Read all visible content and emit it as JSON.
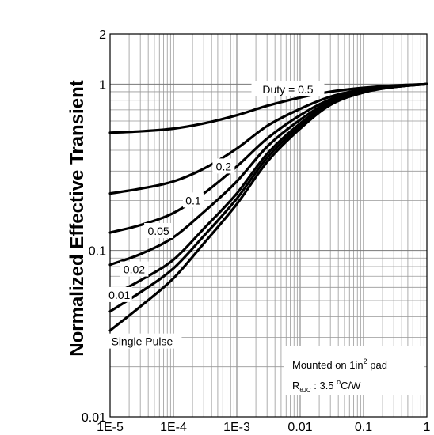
{
  "chart_data": {
    "type": "line",
    "title": "",
    "xlabel": "",
    "ylabel": "Normalized Effective Transient",
    "x_scale": "log",
    "y_scale": "log",
    "xlim": [
      1e-05,
      1
    ],
    "ylim": [
      0.01,
      2
    ],
    "x_ticks": [
      {
        "value": 1e-05,
        "label": "1E-5"
      },
      {
        "value": 0.0001,
        "label": "1E-4"
      },
      {
        "value": 0.001,
        "label": "1E-3"
      },
      {
        "value": 0.01,
        "label": "0.01"
      },
      {
        "value": 0.1,
        "label": "0.1"
      },
      {
        "value": 1,
        "label": "1"
      }
    ],
    "y_ticks": [
      {
        "value": 0.01,
        "label": "0.01"
      },
      {
        "value": 0.1,
        "label": "0.1"
      },
      {
        "value": 1,
        "label": "1"
      },
      {
        "value": 2,
        "label": "2"
      }
    ],
    "grid": true,
    "series_label_prefix": "Duty = ",
    "series": [
      {
        "name": "0.5",
        "x": [
          1e-05,
          3e-05,
          0.0001,
          0.0003,
          0.001,
          0.003,
          0.01,
          0.03,
          0.1,
          0.3,
          1
        ],
        "y": [
          0.51,
          0.52,
          0.54,
          0.58,
          0.65,
          0.74,
          0.83,
          0.9,
          0.95,
          0.98,
          1.0
        ]
      },
      {
        "name": "0.2",
        "x": [
          1e-05,
          3e-05,
          0.0001,
          0.0003,
          0.001,
          0.003,
          0.01,
          0.03,
          0.1,
          0.3,
          1
        ],
        "y": [
          0.22,
          0.235,
          0.26,
          0.31,
          0.41,
          0.56,
          0.71,
          0.84,
          0.93,
          0.97,
          1.0
        ]
      },
      {
        "name": "0.1",
        "x": [
          1e-05,
          3e-05,
          0.0001,
          0.0003,
          0.001,
          0.003,
          0.01,
          0.03,
          0.1,
          0.3,
          1
        ],
        "y": [
          0.128,
          0.142,
          0.168,
          0.22,
          0.32,
          0.47,
          0.65,
          0.81,
          0.92,
          0.97,
          1.0
        ]
      },
      {
        "name": "0.05",
        "x": [
          1e-05,
          3e-05,
          0.0001,
          0.0003,
          0.001,
          0.003,
          0.01,
          0.03,
          0.1,
          0.3,
          1
        ],
        "y": [
          0.082,
          0.095,
          0.12,
          0.17,
          0.26,
          0.42,
          0.61,
          0.79,
          0.91,
          0.97,
          1.0
        ]
      },
      {
        "name": "0.02",
        "x": [
          1e-05,
          3e-05,
          0.0001,
          0.0003,
          0.001,
          0.003,
          0.01,
          0.03,
          0.1,
          0.3,
          1
        ],
        "y": [
          0.053,
          0.066,
          0.088,
          0.135,
          0.22,
          0.38,
          0.58,
          0.77,
          0.9,
          0.96,
          1.0
        ]
      },
      {
        "name": "0.01",
        "x": [
          1e-05,
          3e-05,
          0.0001,
          0.0003,
          0.001,
          0.003,
          0.01,
          0.03,
          0.1,
          0.3,
          1
        ],
        "y": [
          0.043,
          0.056,
          0.078,
          0.122,
          0.205,
          0.36,
          0.56,
          0.76,
          0.9,
          0.96,
          1.0
        ]
      },
      {
        "name": "Single Pulse",
        "x": [
          1e-05,
          3e-05,
          0.0001,
          0.0003,
          0.001,
          0.003,
          0.01,
          0.03,
          0.1,
          0.3,
          1
        ],
        "y": [
          0.033,
          0.046,
          0.068,
          0.11,
          0.19,
          0.34,
          0.54,
          0.75,
          0.89,
          0.96,
          1.0
        ]
      }
    ],
    "annotations": {
      "note_line1": "Mounted on 1in",
      "note_line1_sup": "2",
      "note_line1_end": " pad",
      "note_line2_R": "R",
      "note_line2_sub": "θJC",
      "note_line2_mid": " : 3.5 ",
      "note_line2_deg": "o",
      "note_line2_end": "C/W"
    }
  }
}
